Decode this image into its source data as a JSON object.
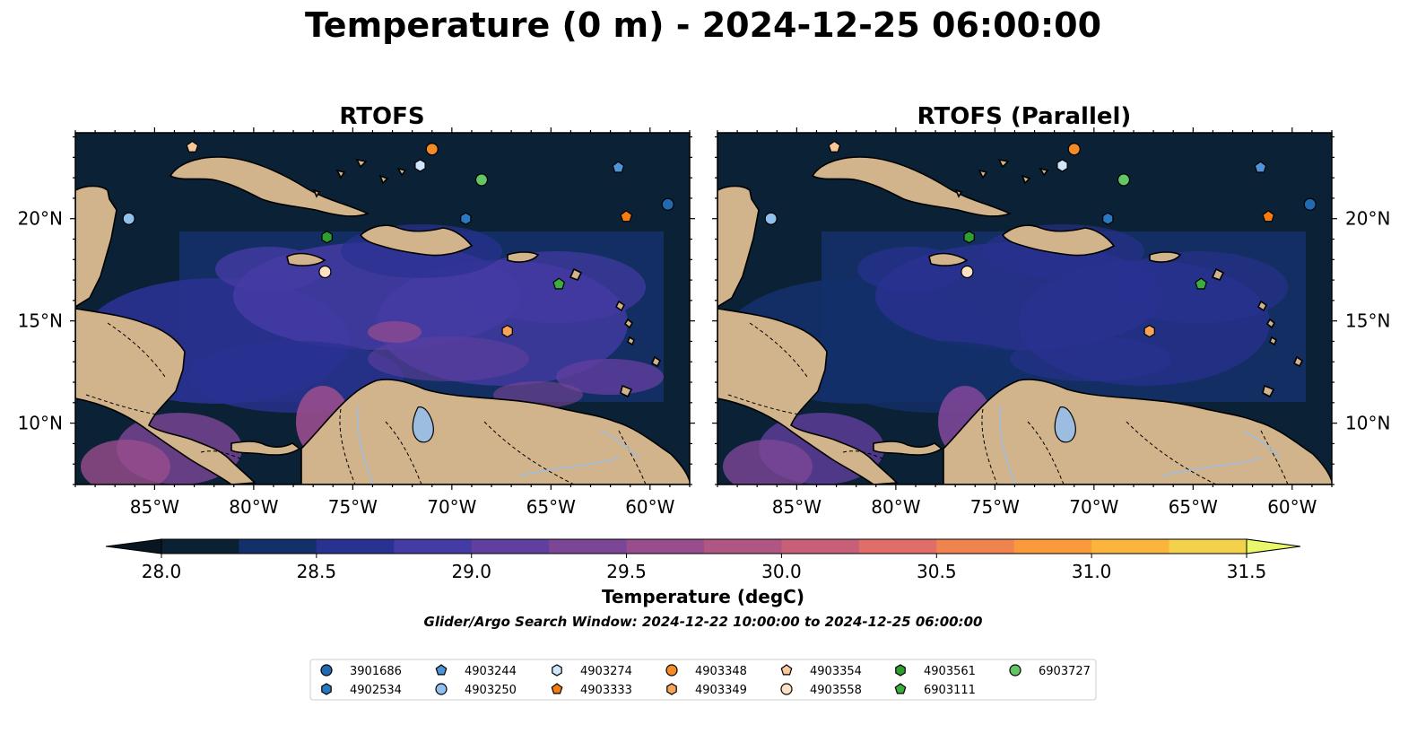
{
  "title": "Temperature (0 m) - 2024-12-25 06:00:00",
  "panels": [
    {
      "title": "RTOFS"
    },
    {
      "title": "RTOFS (Parallel)"
    }
  ],
  "map": {
    "lon_ticks": [
      {
        "value": -85,
        "label": "85°W"
      },
      {
        "value": -80,
        "label": "80°W"
      },
      {
        "value": -75,
        "label": "75°W"
      },
      {
        "value": -70,
        "label": "70°W"
      },
      {
        "value": -65,
        "label": "65°W"
      },
      {
        "value": -60,
        "label": "60°W"
      }
    ],
    "lat_ticks": [
      {
        "value": 20,
        "label": "20°N"
      },
      {
        "value": 15,
        "label": "15°N"
      },
      {
        "value": 10,
        "label": "10°N"
      }
    ],
    "colors": {
      "ocean": "#0b2236",
      "land": "#d2b48c",
      "lake": "#9dbde0",
      "border": "#000000"
    }
  },
  "colorbar": {
    "label": "Temperature (degC)",
    "min": 28.0,
    "max": 31.5,
    "step": 0.25,
    "ticks": [
      "28.0",
      "28.5",
      "29.0",
      "29.5",
      "30.0",
      "30.5",
      "31.0",
      "31.5"
    ],
    "colors": [
      "#0a2033",
      "#14306a",
      "#2a3291",
      "#453ba4",
      "#613f9f",
      "#7c4697",
      "#984d8d",
      "#b05682",
      "#c75f78",
      "#e06d68",
      "#f0844f",
      "#f99a3c",
      "#fbb53c",
      "#f4d14b"
    ],
    "under_color": "#071622",
    "over_color": "#e9f76a"
  },
  "search_window": "Glider/Argo Search Window: 2024-12-22 10:00:00 to 2024-12-25 06:00:00",
  "platforms": [
    {
      "id": "3901686",
      "marker": "circle",
      "color": "#1f6ab0",
      "lon": -59.1,
      "lat": 20.7
    },
    {
      "id": "4902534",
      "marker": "hexagon",
      "color": "#2b78c2",
      "lon": -69.3,
      "lat": 20.0
    },
    {
      "id": "4903244",
      "marker": "pentagon",
      "color": "#4f93d8",
      "lon": -61.6,
      "lat": 22.5
    },
    {
      "id": "4903250",
      "marker": "circle",
      "color": "#8ec1ee",
      "lon": -86.3,
      "lat": 20.0
    },
    {
      "id": "4903274",
      "marker": "hexagon",
      "color": "#cfe5fb",
      "lon": -71.6,
      "lat": 22.6
    },
    {
      "id": "4903333",
      "marker": "pentagon",
      "color": "#f57c10",
      "lon": -61.2,
      "lat": 20.1
    },
    {
      "id": "4903348",
      "marker": "circle",
      "color": "#f58a28",
      "lon": -71.0,
      "lat": 23.4
    },
    {
      "id": "4903349",
      "marker": "hexagon",
      "color": "#f8a35a",
      "lon": -67.2,
      "lat": 14.5
    },
    {
      "id": "4903354",
      "marker": "pentagon",
      "color": "#f8c79a",
      "lon": -83.1,
      "lat": 23.5
    },
    {
      "id": "4903558",
      "marker": "circle",
      "color": "#fde1c5",
      "lon": -76.4,
      "lat": 17.4
    },
    {
      "id": "4903561",
      "marker": "hexagon",
      "color": "#2e9e2e",
      "lon": -76.3,
      "lat": 19.1
    },
    {
      "id": "6903111",
      "marker": "pentagon",
      "color": "#3dae3d",
      "lon": -64.6,
      "lat": 16.8
    },
    {
      "id": "6903727",
      "marker": "circle",
      "color": "#63c563",
      "lon": -68.5,
      "lat": 21.9
    }
  ]
}
